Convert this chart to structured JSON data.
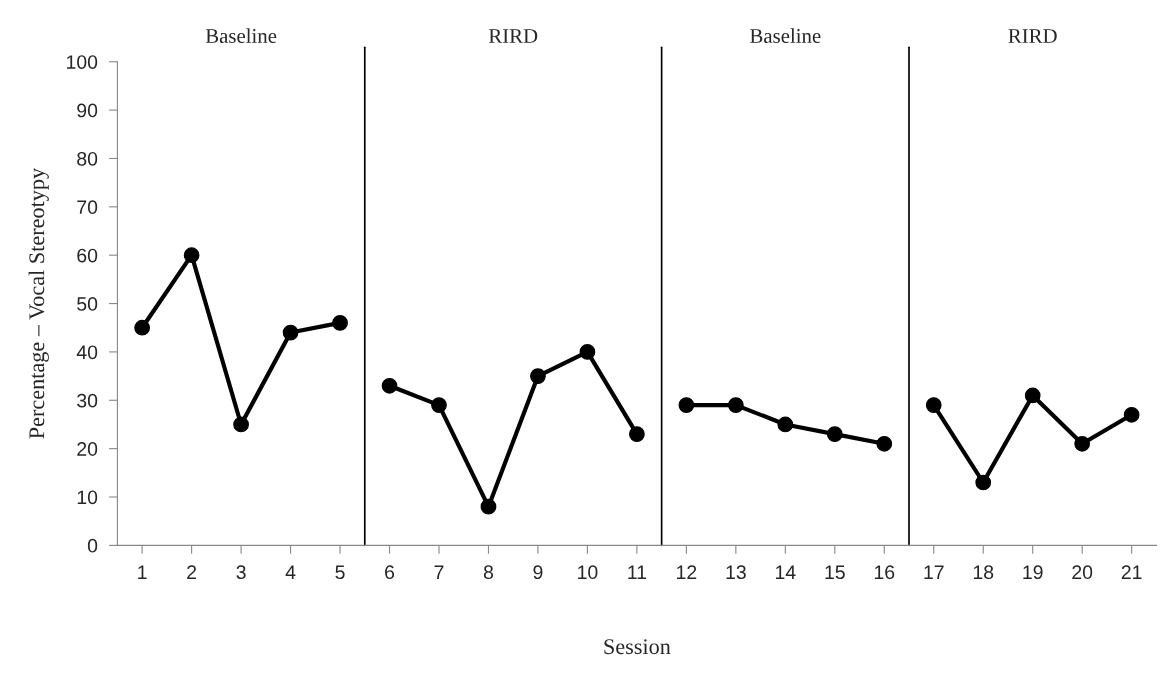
{
  "chart_data": {
    "type": "line",
    "xlabel": "Session",
    "ylabel": "Percentage – Vocal Stereotypy",
    "series": [
      {
        "color": "#000000",
        "x": [
          1,
          2,
          3,
          4,
          5
        ],
        "values": [
          45,
          60,
          25,
          44,
          46
        ]
      },
      {
        "color": "#000000",
        "x": [
          6,
          7,
          8,
          9,
          10,
          11
        ],
        "values": [
          33,
          29,
          8,
          35,
          40,
          23
        ]
      },
      {
        "color": "#000000",
        "x": [
          12,
          13,
          14,
          15,
          16
        ],
        "values": [
          29,
          29,
          25,
          23,
          21
        ]
      },
      {
        "color": "#000000",
        "x": [
          17,
          18,
          19,
          20,
          21
        ],
        "values": [
          29,
          13,
          31,
          21,
          27
        ]
      }
    ],
    "xlim": [
      0.5,
      21.5
    ],
    "xticks": [
      1,
      2,
      3,
      4,
      5,
      6,
      7,
      8,
      9,
      10,
      11,
      12,
      13,
      14,
      15,
      16,
      17,
      18,
      19,
      20,
      21
    ],
    "ylim": [
      0,
      100
    ],
    "yticks": [
      0,
      10,
      20,
      30,
      40,
      50,
      60,
      70,
      80,
      90,
      100
    ],
    "ref_lines": [
      {
        "axis": "x",
        "value": 5.5,
        "color": "#000000"
      },
      {
        "axis": "x",
        "value": 11.5,
        "color": "#000000"
      },
      {
        "axis": "x",
        "value": 16.5,
        "color": "#000000"
      }
    ],
    "annotations": [
      "Baseline",
      "RIRD",
      "Baseline",
      "RIRD"
    ],
    "marker": "circle",
    "line_style": "solid",
    "grid": false,
    "legend": false
  }
}
